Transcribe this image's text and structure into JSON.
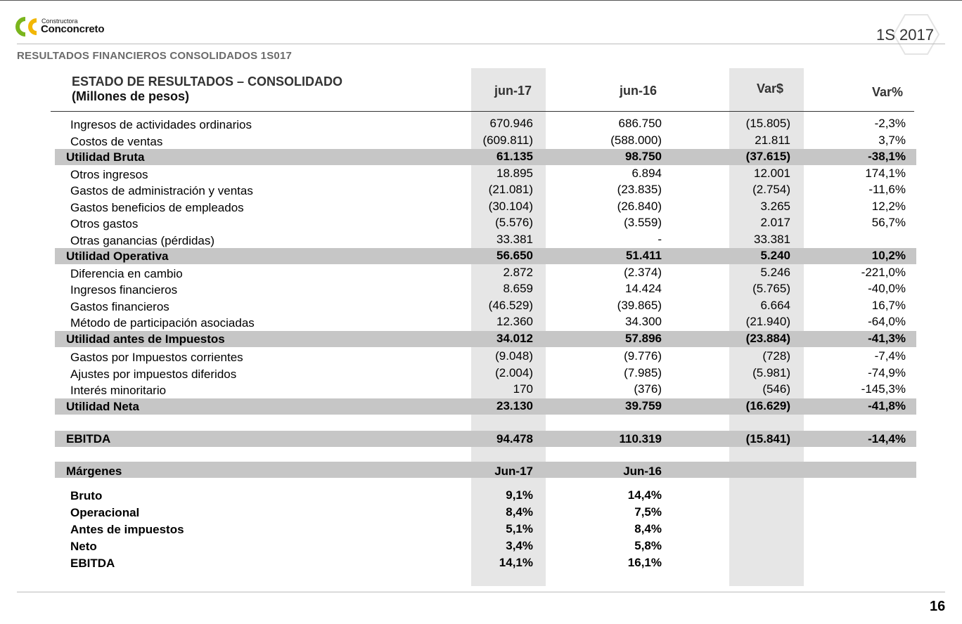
{
  "brand": {
    "small": "Constructora",
    "name": "Conconcreto",
    "colors": {
      "green": "#7ab51d",
      "yellow": "#f2b705"
    }
  },
  "period": "1S 2017",
  "subtitle": "RESULTADOS FINANCIEROS CONSOLIDADOS 1S017",
  "table": {
    "title": "ESTADO DE RESULTADOS – CONSOLIDADO",
    "subtitle": "(Millones de pesos)",
    "columns": [
      "jun-17",
      "jun-16",
      "Var$",
      "Var%"
    ],
    "rows": [
      {
        "label": "Ingresos de actividades ordinarios",
        "values": [
          "670.946",
          "686.750",
          "(15.805)",
          "-2,3%"
        ],
        "bold": false
      },
      {
        "label": "Costos de ventas",
        "values": [
          "(609.811)",
          "(588.000)",
          "21.811",
          "3,7%"
        ],
        "bold": false
      },
      {
        "label": "Utilidad Bruta",
        "values": [
          "61.135",
          "98.750",
          "(37.615)",
          "-38,1%"
        ],
        "bold": true
      },
      {
        "label": "Otros ingresos",
        "values": [
          "18.895",
          "6.894",
          "12.001",
          "174,1%"
        ],
        "bold": false
      },
      {
        "label": "Gastos de administración y ventas",
        "values": [
          "(21.081)",
          "(23.835)",
          "(2.754)",
          "-11,6%"
        ],
        "bold": false
      },
      {
        "label": "Gastos beneficios de empleados",
        "values": [
          "(30.104)",
          "(26.840)",
          "3.265",
          "12,2%"
        ],
        "bold": false
      },
      {
        "label": "Otros gastos",
        "values": [
          "(5.576)",
          "(3.559)",
          "2.017",
          "56,7%"
        ],
        "bold": false
      },
      {
        "label": "Otras ganancias (pérdidas)",
        "values": [
          "33.381",
          "-",
          "33.381",
          ""
        ],
        "bold": false
      },
      {
        "label": "Utilidad Operativa",
        "values": [
          "56.650",
          "51.411",
          "5.240",
          "10,2%"
        ],
        "bold": true
      },
      {
        "label": "Diferencia en cambio",
        "values": [
          "2.872",
          "(2.374)",
          "5.246",
          "-221,0%"
        ],
        "bold": false
      },
      {
        "label": "Ingresos financieros",
        "values": [
          "8.659",
          "14.424",
          "(5.765)",
          "-40,0%"
        ],
        "bold": false
      },
      {
        "label": "Gastos financieros",
        "values": [
          "(46.529)",
          "(39.865)",
          "6.664",
          "16,7%"
        ],
        "bold": false
      },
      {
        "label": "Método de participación asociadas",
        "values": [
          "12.360",
          "34.300",
          "(21.940)",
          "-64,0%"
        ],
        "bold": false
      },
      {
        "label": "Utilidad antes de Impuestos",
        "values": [
          "34.012",
          "57.896",
          "(23.884)",
          "-41,3%"
        ],
        "bold": true
      },
      {
        "label": "Gastos por Impuestos corrientes",
        "values": [
          "(9.048)",
          "(9.776)",
          "(728)",
          "-7,4%"
        ],
        "bold": false
      },
      {
        "label": "Ajustes por impuestos diferidos",
        "values": [
          "(2.004)",
          "(7.985)",
          "(5.981)",
          "-74,9%"
        ],
        "bold": false
      },
      {
        "label": "Interés minoritario",
        "values": [
          "170",
          "(376)",
          "(546)",
          "-145,3%"
        ],
        "bold": false
      },
      {
        "label": "Utilidad Neta",
        "values": [
          "23.130",
          "39.759",
          "(16.629)",
          "-41,8%"
        ],
        "bold": true
      }
    ],
    "ebitda": {
      "label": "EBITDA",
      "values": [
        "94.478",
        "110.319",
        "(15.841)",
        "-14,4%"
      ]
    },
    "margins": {
      "label": "Márgenes",
      "columns": [
        "Jun-17",
        "Jun-16"
      ],
      "rows": [
        {
          "label": "Bruto",
          "values": [
            "9,1%",
            "14,4%"
          ]
        },
        {
          "label": "Operacional",
          "values": [
            "8,4%",
            "7,5%"
          ]
        },
        {
          "label": "Antes de impuestos",
          "values": [
            "5,1%",
            "8,4%"
          ]
        },
        {
          "label": "Neto",
          "values": [
            "3,4%",
            "5,8%"
          ]
        },
        {
          "label": "EBITDA",
          "values": [
            "14,1%",
            "16,1%"
          ]
        }
      ]
    }
  },
  "page_number": "16"
}
